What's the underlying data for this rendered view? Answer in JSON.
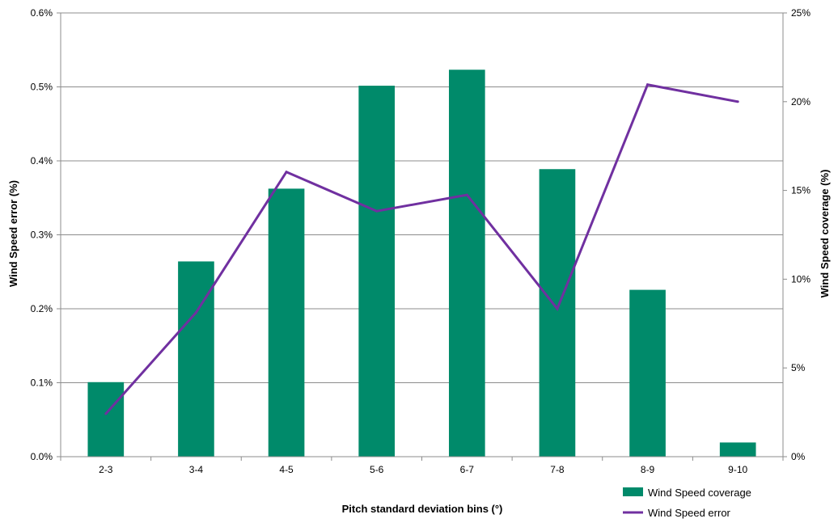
{
  "chart_data": {
    "type": "bar",
    "categories": [
      "2-3",
      "3-4",
      "4-5",
      "5-6",
      "6-7",
      "7-8",
      "8-9",
      "9-10"
    ],
    "series": [
      {
        "name": "Wind Speed coverage",
        "kind": "bar",
        "axis": "right",
        "color": "#008A6A",
        "values": [
          4.2,
          11.0,
          15.1,
          20.9,
          21.8,
          16.2,
          9.4,
          0.8
        ]
      },
      {
        "name": "Wind Speed error",
        "kind": "line",
        "axis": "left",
        "color": "#7030A0",
        "values": [
          0.058,
          0.195,
          0.385,
          0.332,
          0.354,
          0.2,
          0.503,
          0.48
        ]
      }
    ],
    "xlabel": "Pitch standard deviation bins (°)",
    "ylabel": "Wind Speed error (%)",
    "y2label": "Wind Speed coverage (%)",
    "ylim": [
      0,
      0.6
    ],
    "y2lim": [
      0,
      25
    ],
    "yticks": [
      "0.0%",
      "0.1%",
      "0.2%",
      "0.3%",
      "0.4%",
      "0.5%",
      "0.6%"
    ],
    "y2ticks": [
      "0%",
      "5%",
      "10%",
      "15%",
      "20%",
      "25%"
    ],
    "grid": true,
    "legend_position": "bottom-right"
  }
}
